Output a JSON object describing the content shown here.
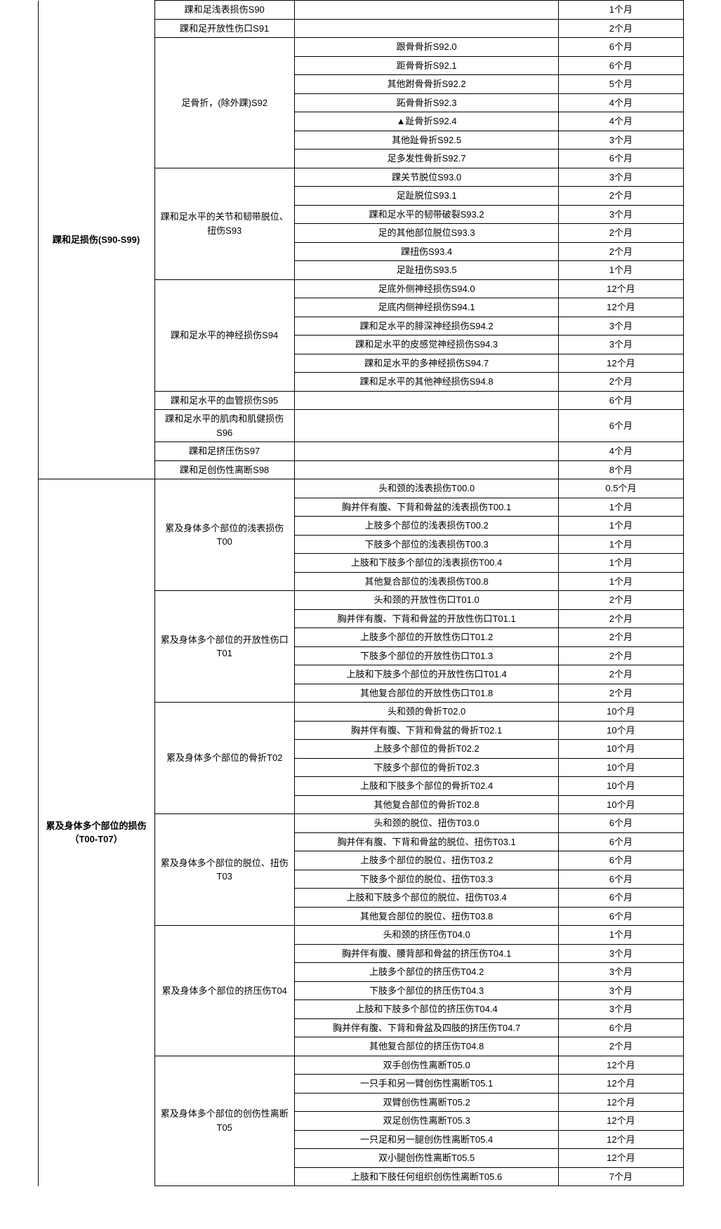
{
  "section1": {
    "title": "踝和足损伤(S90-S99)",
    "groups": [
      {
        "label": "踝和足浅表损伤S90",
        "subs": [
          {
            "desc": "",
            "dur": "1个月"
          }
        ]
      },
      {
        "label": "踝和足开放性伤口S91",
        "subs": [
          {
            "desc": "",
            "dur": "2个月"
          }
        ]
      },
      {
        "label": "足骨折，(除外踝)S92",
        "subs": [
          {
            "desc": "跟骨骨折S92.0",
            "dur": "6个月"
          },
          {
            "desc": "距骨骨折S92.1",
            "dur": "6个月"
          },
          {
            "desc": "其他跗骨骨折S92.2",
            "dur": "5个月"
          },
          {
            "desc": "跖骨骨折S92.3",
            "dur": "4个月"
          },
          {
            "desc": "▲趾骨折S92.4",
            "dur": "4个月"
          },
          {
            "desc": "其他趾骨折S92.5",
            "dur": "3个月"
          },
          {
            "desc": "足多发性骨折S92.7",
            "dur": "6个月"
          }
        ]
      },
      {
        "label": "踝和足水平的关节和韧带脱位、扭伤S93",
        "subs": [
          {
            "desc": "踝关节脱位S93.0",
            "dur": "3个月"
          },
          {
            "desc": "足趾脱位S93.1",
            "dur": "2个月"
          },
          {
            "desc": "踝和足水平的韧带破裂S93.2",
            "dur": "3个月"
          },
          {
            "desc": "足的其他部位脱位S93.3",
            "dur": "2个月"
          },
          {
            "desc": "踝扭伤S93.4",
            "dur": "2个月"
          },
          {
            "desc": "足趾扭伤S93.5",
            "dur": "1个月"
          }
        ]
      },
      {
        "label": "踝和足水平的神经损伤S94",
        "subs": [
          {
            "desc": "足底外侧神经损伤S94.0",
            "dur": "12个月"
          },
          {
            "desc": "足底内侧神经损伤S94.1",
            "dur": "12个月"
          },
          {
            "desc": "踝和足水平的腓深神经损伤S94.2",
            "dur": "3个月"
          },
          {
            "desc": "踝和足水平的皮感觉神经损伤S94.3",
            "dur": "3个月"
          },
          {
            "desc": "踝和足水平的多神经损伤S94.7",
            "dur": "12个月"
          },
          {
            "desc": "踝和足水平的其他神经损伤S94.8",
            "dur": "2个月"
          }
        ]
      },
      {
        "label": "踝和足水平的血管损伤S95",
        "subs": [
          {
            "desc": "",
            "dur": "6个月"
          }
        ]
      },
      {
        "label": "踝和足水平的肌肉和肌健损伤S96",
        "subs": [
          {
            "desc": "",
            "dur": "6个月"
          }
        ]
      },
      {
        "label": "踝和足挤压伤S97",
        "subs": [
          {
            "desc": "",
            "dur": "4个月"
          }
        ]
      },
      {
        "label": "踝和足创伤性离断S98",
        "subs": [
          {
            "desc": "",
            "dur": "8个月"
          }
        ]
      }
    ]
  },
  "section2": {
    "title": "累及身体多个部位的损伤（T00-T07）",
    "groups": [
      {
        "label": "累及身体多个部位的浅表损伤T00",
        "subs": [
          {
            "desc": "头和颈的浅表损伤T00.0",
            "dur": "0.5个月"
          },
          {
            "desc": "胸并伴有腹、下背和骨盆的浅表损伤T00.1",
            "dur": "1个月"
          },
          {
            "desc": "上肢多个部位的浅表损伤T00.2",
            "dur": "1个月"
          },
          {
            "desc": "下肢多个部位的浅表损伤T00.3",
            "dur": "1个月"
          },
          {
            "desc": "上肢和下肢多个部位的浅表损伤T00.4",
            "dur": "1个月"
          },
          {
            "desc": "其他复合部位的浅表损伤T00.8",
            "dur": "1个月"
          }
        ]
      },
      {
        "label": "累及身体多个部位的开放性伤口T01",
        "subs": [
          {
            "desc": "头和颈的开放性伤口T01.0",
            "dur": "2个月"
          },
          {
            "desc": "胸并伴有腹、下背和骨盆的开放性伤口T01.1",
            "dur": "2个月"
          },
          {
            "desc": "上肢多个部位的开放性伤口T01.2",
            "dur": "2个月"
          },
          {
            "desc": "下肢多个部位的开放性伤口T01.3",
            "dur": "2个月"
          },
          {
            "desc": "上肢和下肢多个部位的开放性伤口T01.4",
            "dur": "2个月"
          },
          {
            "desc": "其他复合部位的开放性伤口T01.8",
            "dur": "2个月"
          }
        ]
      },
      {
        "label": "累及身体多个部位的骨折T02",
        "subs": [
          {
            "desc": "头和颈的骨折T02.0",
            "dur": "10个月"
          },
          {
            "desc": "胸并伴有腹、下背和骨盆的骨折T02.1",
            "dur": "10个月"
          },
          {
            "desc": "上肢多个部位的骨折T02.2",
            "dur": "10个月"
          },
          {
            "desc": "下肢多个部位的骨折T02.3",
            "dur": "10个月"
          },
          {
            "desc": "上肢和下肢多个部位的骨折T02.4",
            "dur": "10个月"
          },
          {
            "desc": "其他复合部位的骨折T02.8",
            "dur": "10个月"
          }
        ]
      },
      {
        "label": "累及身体多个部位的脱位、扭伤T03",
        "subs": [
          {
            "desc": "头和颈的脱位、扭伤T03.0",
            "dur": "6个月"
          },
          {
            "desc": "胸并伴有腹、下背和骨盆的脱位、扭伤T03.1",
            "dur": "6个月"
          },
          {
            "desc": "上肢多个部位的脱位、扭伤T03.2",
            "dur": "6个月"
          },
          {
            "desc": "下肢多个部位的脱位、扭伤T03.3",
            "dur": "6个月"
          },
          {
            "desc": "上肢和下肢多个部位的脱位、扭伤T03.4",
            "dur": "6个月"
          },
          {
            "desc": "其他复合部位的脱位、扭伤T03.8",
            "dur": "6个月"
          }
        ]
      },
      {
        "label": "累及身体多个部位的挤压伤T04",
        "subs": [
          {
            "desc": "头和颈的挤压伤T04.0",
            "dur": "1个月"
          },
          {
            "desc": "胸并伴有腹、腰背部和骨盆的挤压伤T04.1",
            "dur": "3个月"
          },
          {
            "desc": "上肢多个部位的挤压伤T04.2",
            "dur": "3个月"
          },
          {
            "desc": "下肢多个部位的挤压伤T04.3",
            "dur": "3个月"
          },
          {
            "desc": "上肢和下肢多个部位的挤压伤T04.4",
            "dur": "3个月"
          },
          {
            "desc": "胸并伴有腹、下背和骨盆及四肢的挤压伤T04.7",
            "dur": "6个月"
          },
          {
            "desc": "其他复合部位的挤压伤T04.8",
            "dur": "2个月"
          }
        ]
      },
      {
        "label": "累及身体多个部位的创伤性离断T05",
        "subs": [
          {
            "desc": "双手创伤性离断T05.0",
            "dur": "12个月"
          },
          {
            "desc": "一只手和另一臂创伤性离断T05.1",
            "dur": "12个月"
          },
          {
            "desc": "双臂创伤性离断T05.2",
            "dur": "12个月"
          },
          {
            "desc": "双足创伤性离断T05.3",
            "dur": "12个月"
          },
          {
            "desc": "一只足和另一腿创伤性离断T05.4",
            "dur": "12个月"
          },
          {
            "desc": "双小腿创伤性离断T05.5",
            "dur": "12个月"
          },
          {
            "desc": "上肢和下肢任何组织创伤性离断T05.6",
            "dur": "7个月"
          }
        ]
      }
    ]
  }
}
